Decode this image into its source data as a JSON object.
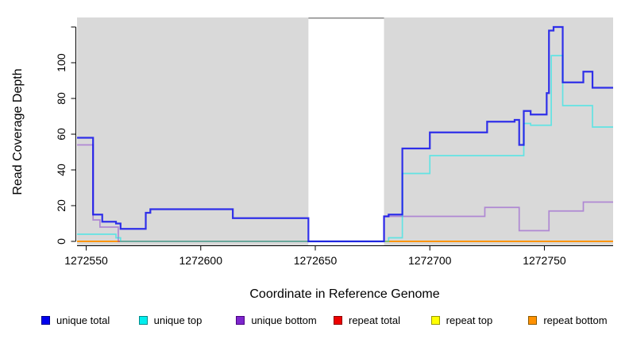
{
  "chart_data": {
    "type": "line",
    "subtype": "step-coverage-plot",
    "title": "",
    "xlabel": "Coordinate in Reference Genome",
    "ylabel": "Read Coverage Depth",
    "x_range": [
      1272546,
      1272780
    ],
    "y_range": [
      0,
      125
    ],
    "x_ticks": [
      1272550,
      1272600,
      1272650,
      1272700,
      1272750
    ],
    "y_ticks": [
      0,
      20,
      40,
      60,
      80,
      100
    ],
    "y_ticks_unlabeled": [
      120
    ],
    "grid": false,
    "legend_position": "bottom",
    "panel_color": "#d9d9d9",
    "gap_region": {
      "start": 1272647,
      "end": 1272680,
      "fill": "#ffffff",
      "top_border": "#888888"
    },
    "axis_color": "#000000",
    "draw_order": [
      "repeat total",
      "repeat top",
      "repeat bottom",
      "unique bottom",
      "unique top",
      "unique total"
    ],
    "series": [
      {
        "name": "unique total",
        "id": "unique-total",
        "line_color": "rgba(16,16,235,0.85)",
        "line_width": 2.2,
        "legend_fill": "#0000ee",
        "legend_border": "#00008b",
        "steps": [
          [
            1272546,
            58
          ],
          [
            1272553,
            15
          ],
          [
            1272557,
            11
          ],
          [
            1272563,
            10
          ],
          [
            1272565,
            7
          ],
          [
            1272576,
            16
          ],
          [
            1272578,
            18
          ],
          [
            1272614,
            13
          ],
          [
            1272647,
            0
          ],
          [
            1272680,
            14
          ],
          [
            1272682,
            15
          ],
          [
            1272688,
            52
          ],
          [
            1272700,
            61
          ],
          [
            1272725,
            67
          ],
          [
            1272737,
            68
          ],
          [
            1272739,
            54
          ],
          [
            1272741,
            73
          ],
          [
            1272744,
            71
          ],
          [
            1272751,
            83
          ],
          [
            1272752,
            118
          ],
          [
            1272754,
            120
          ],
          [
            1272758,
            89
          ],
          [
            1272767,
            95
          ],
          [
            1272771,
            86
          ]
        ]
      },
      {
        "name": "unique top",
        "id": "unique-top",
        "line_color": "rgba(0,235,235,0.55)",
        "line_width": 1.7,
        "legend_fill": "#00eeee",
        "legend_border": "#008b8b",
        "steps": [
          [
            1272546,
            4
          ],
          [
            1272563,
            2
          ],
          [
            1272565,
            0
          ],
          [
            1272682,
            2
          ],
          [
            1272688,
            38
          ],
          [
            1272700,
            48
          ],
          [
            1272741,
            66
          ],
          [
            1272744,
            65
          ],
          [
            1272753,
            104
          ],
          [
            1272758,
            76
          ],
          [
            1272771,
            64
          ]
        ]
      },
      {
        "name": "unique bottom",
        "id": "unique-bottom",
        "line_color": "rgba(125,38,205,0.45)",
        "line_width": 1.7,
        "legend_fill": "#7d26cd",
        "legend_border": "#4b0082",
        "steps": [
          [
            1272546,
            54
          ],
          [
            1272553,
            12
          ],
          [
            1272556,
            8
          ],
          [
            1272564,
            0
          ],
          [
            1272680,
            14
          ],
          [
            1272724,
            19
          ],
          [
            1272739,
            6
          ],
          [
            1272752,
            17
          ],
          [
            1272767,
            22
          ]
        ]
      },
      {
        "name": "repeat total",
        "id": "repeat-total",
        "line_color": "rgba(238,0,0,0.9)",
        "line_width": 1.2,
        "legend_fill": "#ee0000",
        "legend_border": "#8b0000",
        "steps": [
          [
            1272546,
            0
          ]
        ]
      },
      {
        "name": "repeat top",
        "id": "repeat-top",
        "line_color": "rgba(255,255,0,0.9)",
        "line_width": 1.2,
        "legend_fill": "#ffff00",
        "legend_border": "#999900",
        "steps": [
          [
            1272546,
            0
          ]
        ]
      },
      {
        "name": "repeat bottom",
        "id": "repeat-bottom",
        "line_color": "rgba(255,145,0,0.95)",
        "line_width": 2,
        "legend_fill": "#ff9100",
        "legend_border": "#8b5a00",
        "steps": [
          [
            1272546,
            0
          ]
        ]
      }
    ]
  }
}
